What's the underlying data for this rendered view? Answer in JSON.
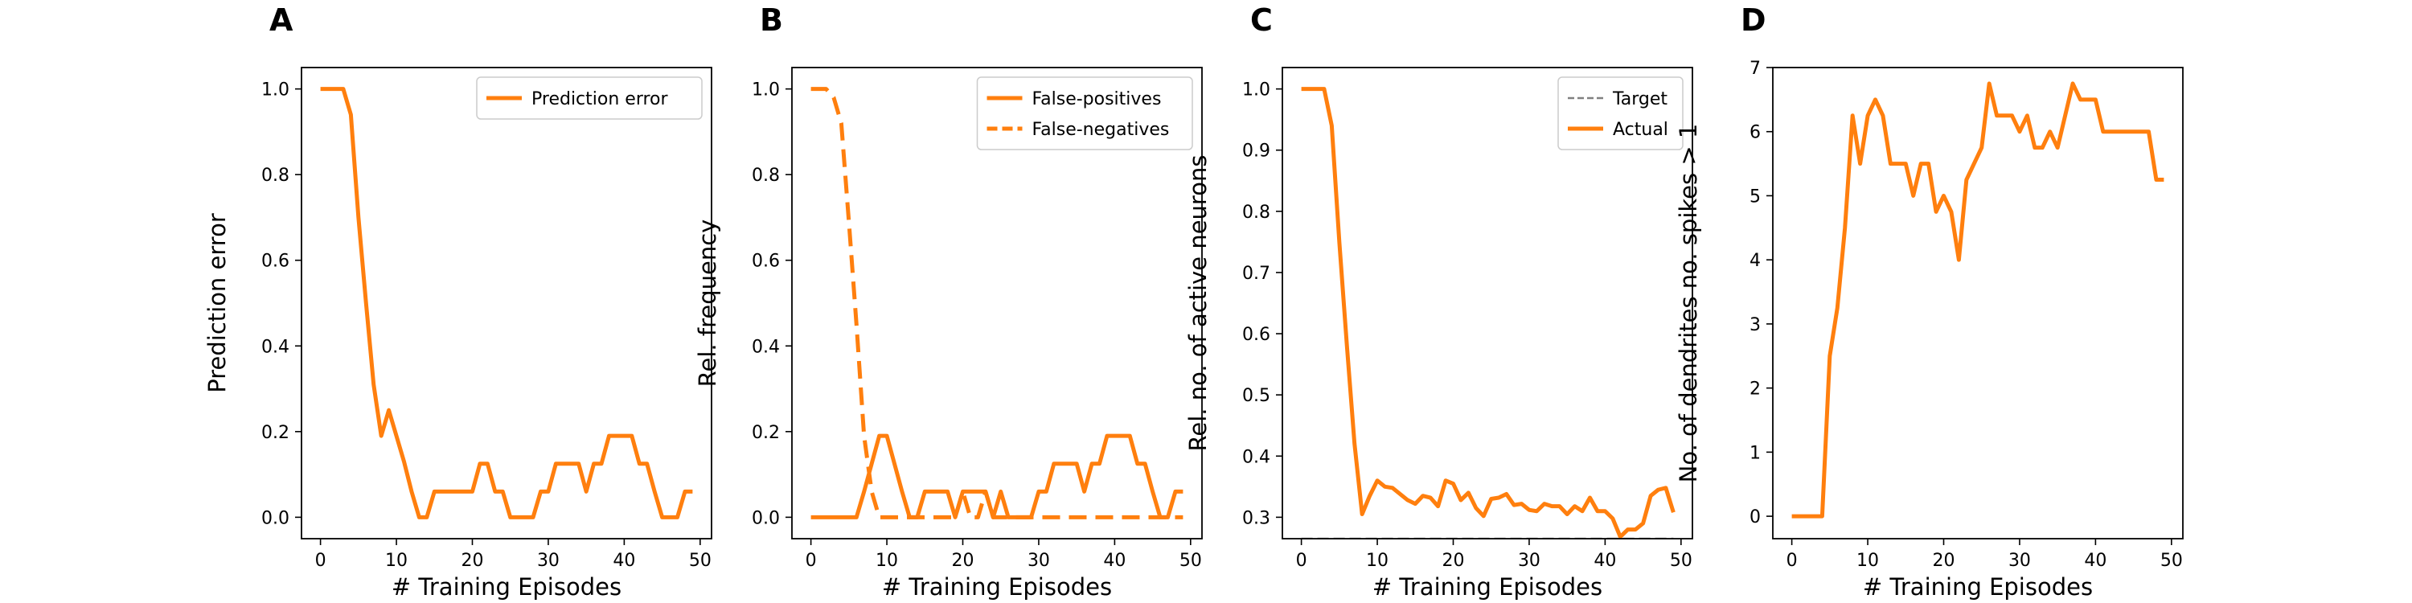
{
  "colors": {
    "orange": "#ff7f0e",
    "target": "#808080",
    "axis": "#000000",
    "legend_edge": "#cccccc"
  },
  "chart_data": [
    {
      "panel": "A",
      "type": "line",
      "xlabel": "# Training Episodes",
      "ylabel": "Prediction error",
      "xlim": [
        -2.5,
        51.5
      ],
      "ylim": [
        -0.05,
        1.05
      ],
      "xticks": [
        0,
        10,
        20,
        30,
        40,
        50
      ],
      "yticks": [
        0.0,
        0.2,
        0.4,
        0.6,
        0.8,
        1.0
      ],
      "tick_decimals": 1,
      "legend_position": "upper-right",
      "series": [
        {
          "name": "Prediction error",
          "style": "solid",
          "color": "#ff7f0e",
          "x": [
            0,
            1,
            2,
            3,
            4,
            5,
            6,
            7,
            8,
            9,
            10,
            11,
            12,
            13,
            14,
            15,
            16,
            17,
            18,
            19,
            20,
            21,
            22,
            23,
            24,
            25,
            26,
            27,
            28,
            29,
            30,
            31,
            32,
            33,
            34,
            35,
            36,
            37,
            38,
            39,
            40,
            41,
            42,
            43,
            44,
            45,
            46,
            47,
            48,
            49
          ],
          "y": [
            1.0,
            1.0,
            1.0,
            1.0,
            0.94,
            0.7,
            0.5,
            0.31,
            0.19,
            0.25,
            0.19,
            0.13,
            0.06,
            0.0,
            0.0,
            0.06,
            0.06,
            0.06,
            0.06,
            0.06,
            0.06,
            0.125,
            0.125,
            0.06,
            0.06,
            0.0,
            0.0,
            0.0,
            0.0,
            0.06,
            0.06,
            0.125,
            0.125,
            0.125,
            0.125,
            0.06,
            0.125,
            0.125,
            0.19,
            0.19,
            0.19,
            0.19,
            0.125,
            0.125,
            0.06,
            0.0,
            0.0,
            0.0,
            0.06,
            0.06
          ]
        }
      ]
    },
    {
      "panel": "B",
      "type": "line",
      "xlabel": "# Training Episodes",
      "ylabel": "Rel. frequency",
      "xlim": [
        -2.5,
        51.5
      ],
      "ylim": [
        -0.05,
        1.05
      ],
      "xticks": [
        0,
        10,
        20,
        30,
        40,
        50
      ],
      "yticks": [
        0.0,
        0.2,
        0.4,
        0.6,
        0.8,
        1.0
      ],
      "tick_decimals": 1,
      "legend_position": "upper-right",
      "series": [
        {
          "name": "False-positives",
          "style": "solid",
          "color": "#ff7f0e",
          "x": [
            0,
            1,
            2,
            3,
            4,
            5,
            6,
            7,
            8,
            9,
            10,
            11,
            12,
            13,
            14,
            15,
            16,
            17,
            18,
            19,
            20,
            21,
            22,
            23,
            24,
            25,
            26,
            27,
            28,
            29,
            30,
            31,
            32,
            33,
            34,
            35,
            36,
            37,
            38,
            39,
            40,
            41,
            42,
            43,
            44,
            45,
            46,
            47,
            48,
            49
          ],
          "y": [
            0.0,
            0.0,
            0.0,
            0.0,
            0.0,
            0.0,
            0.0,
            0.06,
            0.125,
            0.19,
            0.19,
            0.125,
            0.06,
            0.0,
            0.0,
            0.06,
            0.06,
            0.06,
            0.06,
            0.0,
            0.06,
            0.06,
            0.06,
            0.06,
            0.0,
            0.06,
            0.0,
            0.0,
            0.0,
            0.0,
            0.06,
            0.06,
            0.125,
            0.125,
            0.125,
            0.125,
            0.06,
            0.125,
            0.125,
            0.19,
            0.19,
            0.19,
            0.19,
            0.125,
            0.125,
            0.06,
            0.0,
            0.0,
            0.06,
            0.06
          ]
        },
        {
          "name": "False-negatives",
          "style": "dashed",
          "color": "#ff7f0e",
          "x": [
            0,
            1,
            2,
            3,
            4,
            5,
            6,
            7,
            8,
            9,
            10,
            11,
            12,
            13,
            14,
            15,
            16,
            17,
            18,
            19,
            20,
            21,
            22,
            23,
            24,
            25,
            26,
            27,
            28,
            29,
            30,
            31,
            32,
            33,
            34,
            35,
            36,
            37,
            38,
            39,
            40,
            41,
            42,
            43,
            44,
            45,
            46,
            47,
            48,
            49
          ],
          "y": [
            1.0,
            1.0,
            1.0,
            0.98,
            0.92,
            0.69,
            0.45,
            0.19,
            0.06,
            0.0,
            0.0,
            0.0,
            0.0,
            0.0,
            0.0,
            0.0,
            0.0,
            0.0,
            0.0,
            0.0,
            0.06,
            0.0,
            0.0,
            0.06,
            0.0,
            0.0,
            0.0,
            0.0,
            0.0,
            0.0,
            0.0,
            0.0,
            0.0,
            0.0,
            0.0,
            0.0,
            0.0,
            0.0,
            0.0,
            0.0,
            0.0,
            0.0,
            0.0,
            0.0,
            0.0,
            0.0,
            0.0,
            0.0,
            0.0,
            0.0
          ]
        }
      ]
    },
    {
      "panel": "C",
      "type": "line",
      "xlabel": "# Training Episodes",
      "ylabel": "Rel. no. of active neurons",
      "xlim": [
        -2.5,
        51.5
      ],
      "ylim": [
        0.265,
        1.035
      ],
      "xticks": [
        0,
        10,
        20,
        30,
        40,
        50
      ],
      "yticks": [
        0.3,
        0.4,
        0.5,
        0.6,
        0.7,
        0.8,
        0.9,
        1.0
      ],
      "tick_decimals": 1,
      "legend_position": "upper-right",
      "series": [
        {
          "name": "Target",
          "style": "dashed-thin",
          "color": "#808080",
          "x": [
            0,
            49
          ],
          "y": [
            0.265,
            0.265
          ]
        },
        {
          "name": "Actual",
          "style": "solid",
          "color": "#ff7f0e",
          "x": [
            0,
            1,
            2,
            3,
            4,
            5,
            6,
            7,
            8,
            9,
            10,
            11,
            12,
            13,
            14,
            15,
            16,
            17,
            18,
            19,
            20,
            21,
            22,
            23,
            24,
            25,
            26,
            27,
            28,
            29,
            30,
            31,
            32,
            33,
            34,
            35,
            36,
            37,
            38,
            39,
            40,
            41,
            42,
            43,
            44,
            45,
            46,
            47,
            48,
            49
          ],
          "y": [
            1.0,
            1.0,
            1.0,
            1.0,
            0.94,
            0.75,
            0.58,
            0.42,
            0.305,
            0.335,
            0.36,
            0.35,
            0.348,
            0.338,
            0.328,
            0.322,
            0.335,
            0.332,
            0.318,
            0.36,
            0.355,
            0.328,
            0.34,
            0.315,
            0.302,
            0.33,
            0.332,
            0.338,
            0.32,
            0.322,
            0.312,
            0.31,
            0.322,
            0.318,
            0.318,
            0.305,
            0.318,
            0.31,
            0.332,
            0.31,
            0.31,
            0.298,
            0.268,
            0.28,
            0.28,
            0.29,
            0.335,
            0.345,
            0.348,
            0.308
          ]
        }
      ]
    },
    {
      "panel": "D",
      "type": "line",
      "xlabel": "# Training Episodes",
      "ylabel": "No. of dendrites no. spikes > 1",
      "xlim": [
        -2.5,
        51.5
      ],
      "ylim": [
        -0.35,
        7.0
      ],
      "xticks": [
        0,
        10,
        20,
        30,
        40,
        50
      ],
      "yticks": [
        0,
        1,
        2,
        3,
        4,
        5,
        6,
        7
      ],
      "tick_decimals": 0,
      "legend_position": "none",
      "series": [
        {
          "name": "",
          "style": "solid",
          "color": "#ff7f0e",
          "x": [
            0,
            1,
            2,
            3,
            4,
            5,
            6,
            7,
            8,
            9,
            10,
            11,
            12,
            13,
            14,
            15,
            16,
            17,
            18,
            19,
            20,
            21,
            22,
            23,
            24,
            25,
            26,
            27,
            28,
            29,
            30,
            31,
            32,
            33,
            34,
            35,
            36,
            37,
            38,
            39,
            40,
            41,
            42,
            43,
            44,
            45,
            46,
            47,
            48,
            49
          ],
          "y": [
            0,
            0,
            0,
            0,
            0,
            2.5,
            3.25,
            4.5,
            6.25,
            5.5,
            6.25,
            6.5,
            6.25,
            5.5,
            5.5,
            5.5,
            5.0,
            5.5,
            5.5,
            4.75,
            5.0,
            4.75,
            4.0,
            5.25,
            5.5,
            5.75,
            6.75,
            6.25,
            6.25,
            6.25,
            6.0,
            6.25,
            5.75,
            5.75,
            6.0,
            5.75,
            6.25,
            6.75,
            6.5,
            6.5,
            6.5,
            6.0,
            6.0,
            6.0,
            6.0,
            6.0,
            6.0,
            6.0,
            5.25,
            5.25
          ]
        }
      ]
    }
  ]
}
